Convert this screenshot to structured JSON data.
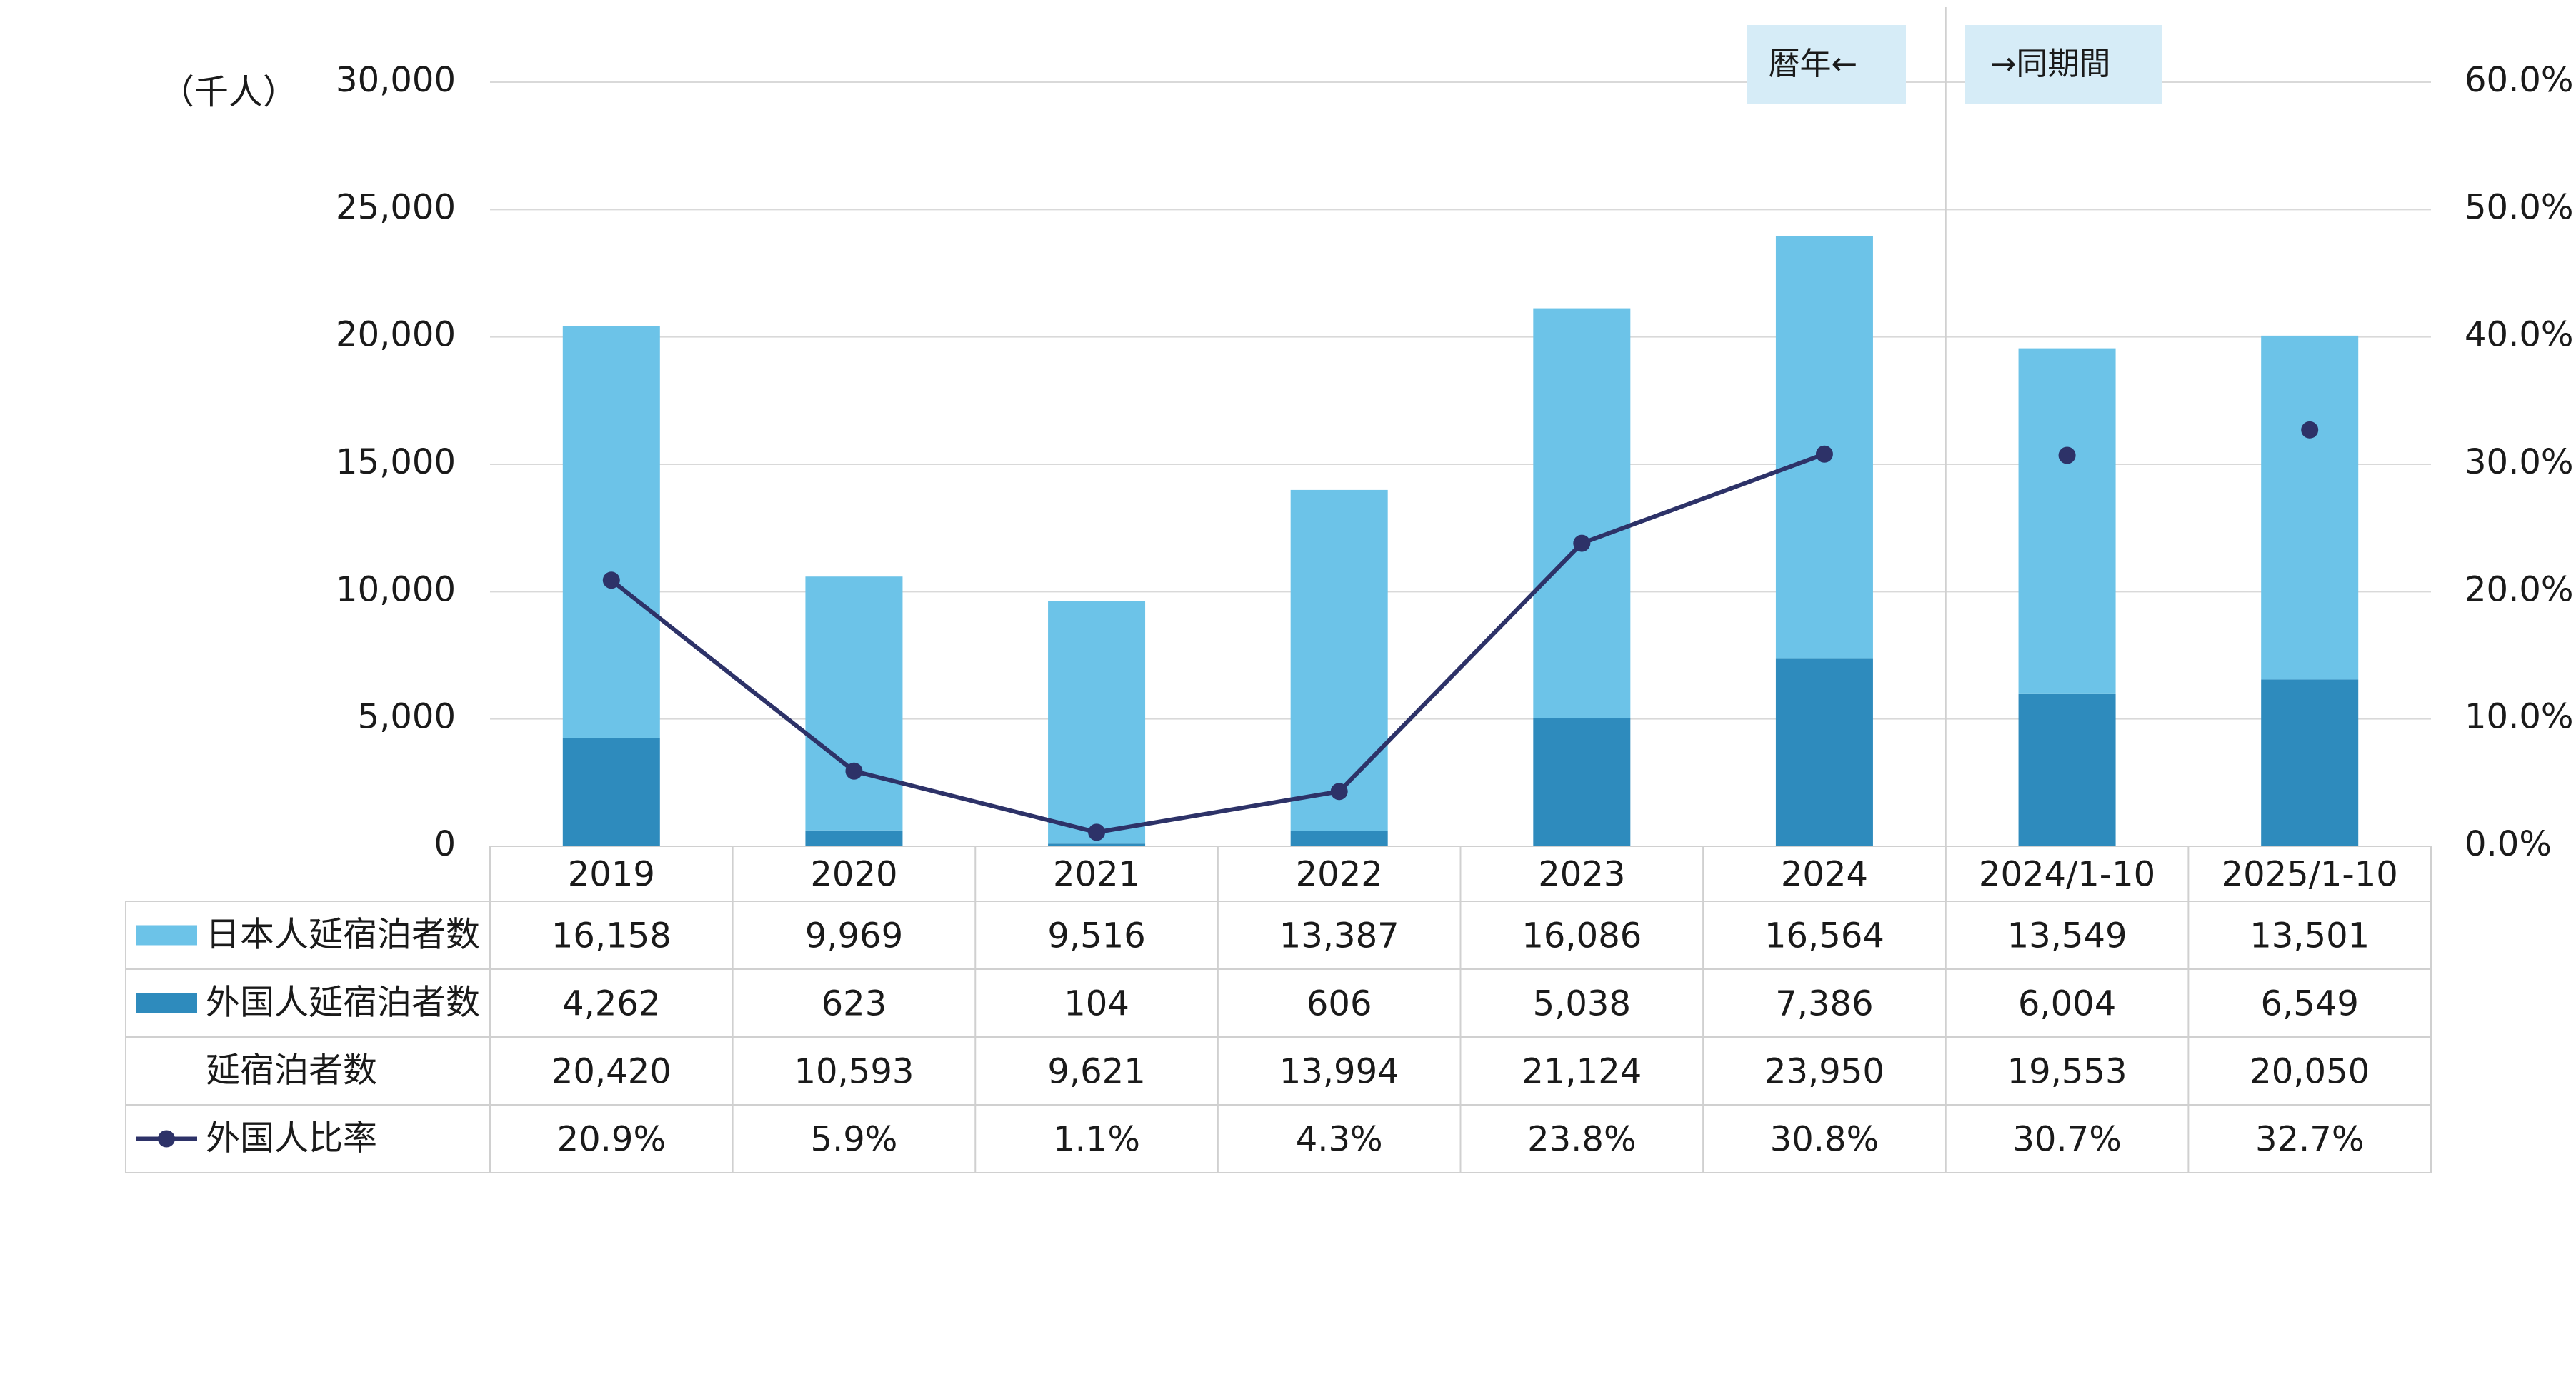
{
  "colors": {
    "japanese": "#6cc3e8",
    "foreign": "#2e8bbd",
    "ratio_line": "#2d3268",
    "grid": "#d9d9d9",
    "table_border": "#d0d0d0",
    "annotation_bg": "#d6ecf7"
  },
  "annotations": {
    "calendar_year": "暦年←",
    "same_period": "→同期間"
  },
  "chart_data": {
    "type": "bar",
    "stacked": true,
    "categories": [
      "2019",
      "2020",
      "2021",
      "2022",
      "2023",
      "2024",
      "2024/1-10",
      "2025/1-10"
    ],
    "ylabel": "（千人）",
    "ylim": [
      0,
      30000
    ],
    "yticks": [
      "0",
      "5,000",
      "10,000",
      "15,000",
      "20,000",
      "25,000",
      "30,000"
    ],
    "y2lim": [
      0,
      60
    ],
    "y2ticks": [
      "0.0%",
      "10.0%",
      "20.0%",
      "30.0%",
      "40.0%",
      "50.0%",
      "60.0%"
    ],
    "grid": true,
    "series": [
      {
        "name": "日本人延宿泊者数",
        "kind": "bar",
        "values": [
          16158,
          9969,
          9516,
          13387,
          16086,
          16564,
          13549,
          13501
        ],
        "labels": [
          "16,158",
          "9,969",
          "9,516",
          "13,387",
          "16,086",
          "16,564",
          "13,549",
          "13,501"
        ]
      },
      {
        "name": "外国人延宿泊者数",
        "kind": "bar",
        "values": [
          4262,
          623,
          104,
          606,
          5038,
          7386,
          6004,
          6549
        ],
        "labels": [
          "4,262",
          "623",
          "104",
          "606",
          "5,038",
          "7,386",
          "6,004",
          "6,549"
        ]
      },
      {
        "name": "延宿泊者数",
        "kind": "total",
        "values": [
          20420,
          10593,
          9621,
          13994,
          21124,
          23950,
          19553,
          20050
        ],
        "labels": [
          "20,420",
          "10,593",
          "9,621",
          "13,994",
          "21,124",
          "23,950",
          "19,553",
          "20,050"
        ]
      },
      {
        "name": "外国人比率",
        "kind": "line",
        "axis": "secondary",
        "values": [
          20.9,
          5.9,
          1.1,
          4.3,
          23.8,
          30.8,
          30.7,
          32.7
        ],
        "labels": [
          "20.9%",
          "5.9%",
          "1.1%",
          "4.3%",
          "23.8%",
          "30.8%",
          "30.7%",
          "32.7%"
        ]
      }
    ]
  }
}
